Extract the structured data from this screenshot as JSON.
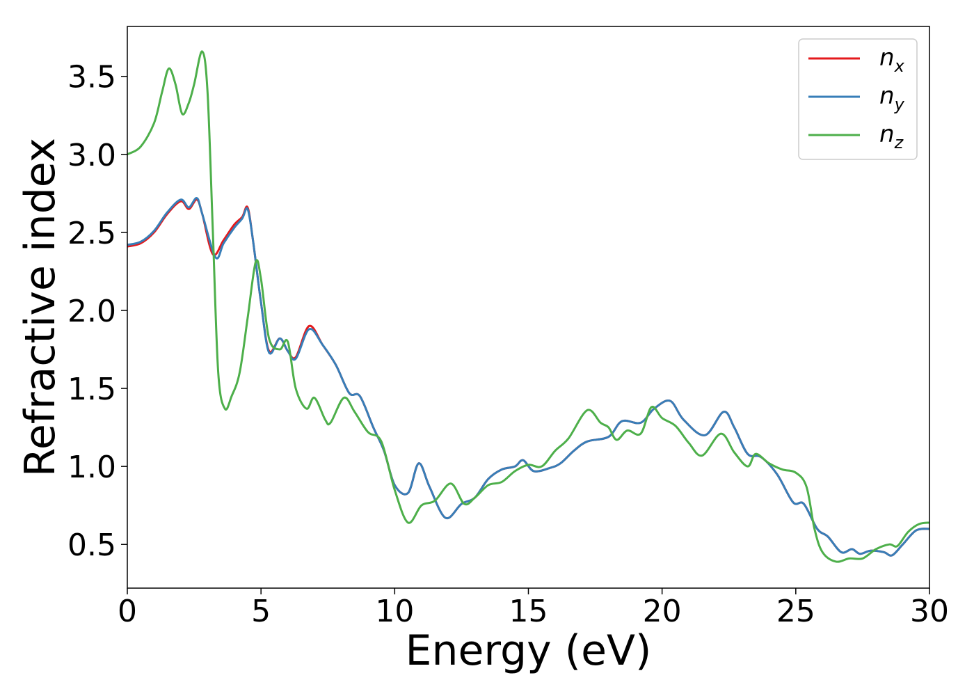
{
  "chart_data": {
    "type": "line",
    "title": "",
    "xlabel": "Energy (eV)",
    "ylabel": "Refractive index",
    "xlim": [
      0,
      30
    ],
    "ylim": [
      0.22,
      3.82
    ],
    "xticks": [
      "0",
      "5",
      "10",
      "15",
      "20",
      "25",
      "30"
    ],
    "yticks": [
      "0.5",
      "1.0",
      "1.5",
      "2.0",
      "2.5",
      "3.0",
      "3.5"
    ],
    "grid": false,
    "legend_position": "top-right",
    "series": [
      {
        "name": "n_x",
        "label_main": "n",
        "label_sub": "x",
        "color": "#e41a1c",
        "points": [
          [
            0,
            2.41
          ],
          [
            0.5,
            2.43
          ],
          [
            1,
            2.5
          ],
          [
            1.5,
            2.62
          ],
          [
            2,
            2.7
          ],
          [
            2.3,
            2.65
          ],
          [
            2.6,
            2.71
          ],
          [
            2.8,
            2.62
          ],
          [
            3.2,
            2.36
          ],
          [
            3.6,
            2.45
          ],
          [
            4,
            2.55
          ],
          [
            4.3,
            2.6
          ],
          [
            4.5,
            2.66
          ],
          [
            4.7,
            2.45
          ],
          [
            5,
            2.05
          ],
          [
            5.3,
            1.74
          ],
          [
            5.7,
            1.82
          ],
          [
            6,
            1.74
          ],
          [
            6.3,
            1.7
          ],
          [
            6.8,
            1.9
          ],
          [
            7.3,
            1.78
          ],
          [
            7.8,
            1.65
          ],
          [
            8.3,
            1.47
          ],
          [
            8.7,
            1.45
          ],
          [
            9.2,
            1.25
          ],
          [
            9.6,
            1.1
          ],
          [
            10,
            0.88
          ],
          [
            10.5,
            0.83
          ],
          [
            10.9,
            1.02
          ],
          [
            11.3,
            0.87
          ],
          [
            11.9,
            0.67
          ],
          [
            12.5,
            0.76
          ],
          [
            13,
            0.8
          ],
          [
            13.5,
            0.92
          ],
          [
            14,
            0.98
          ],
          [
            14.5,
            1.0
          ],
          [
            14.8,
            1.04
          ],
          [
            15.2,
            0.97
          ],
          [
            15.8,
            0.99
          ],
          [
            16.2,
            1.02
          ],
          [
            16.7,
            1.1
          ],
          [
            17.2,
            1.16
          ],
          [
            18,
            1.19
          ],
          [
            18.5,
            1.29
          ],
          [
            19.2,
            1.28
          ],
          [
            19.7,
            1.37
          ],
          [
            20.3,
            1.42
          ],
          [
            20.8,
            1.3
          ],
          [
            21.6,
            1.2
          ],
          [
            22.3,
            1.35
          ],
          [
            22.7,
            1.25
          ],
          [
            23.2,
            1.08
          ],
          [
            23.7,
            1.06
          ],
          [
            24.3,
            0.95
          ],
          [
            24.9,
            0.77
          ],
          [
            25.3,
            0.76
          ],
          [
            25.8,
            0.6
          ],
          [
            26.2,
            0.55
          ],
          [
            26.7,
            0.45
          ],
          [
            27.1,
            0.47
          ],
          [
            27.4,
            0.44
          ],
          [
            27.8,
            0.46
          ],
          [
            28.3,
            0.45
          ],
          [
            28.6,
            0.43
          ],
          [
            29,
            0.5
          ],
          [
            29.5,
            0.59
          ],
          [
            30,
            0.6
          ]
        ]
      },
      {
        "name": "n_y",
        "label_main": "n",
        "label_sub": "y",
        "color": "#377eb8",
        "points": [
          [
            0,
            2.42
          ],
          [
            0.5,
            2.44
          ],
          [
            1,
            2.51
          ],
          [
            1.5,
            2.63
          ],
          [
            2,
            2.71
          ],
          [
            2.3,
            2.66
          ],
          [
            2.6,
            2.72
          ],
          [
            2.8,
            2.62
          ],
          [
            3.3,
            2.34
          ],
          [
            3.6,
            2.43
          ],
          [
            4,
            2.53
          ],
          [
            4.3,
            2.59
          ],
          [
            4.5,
            2.65
          ],
          [
            4.7,
            2.45
          ],
          [
            5,
            2.05
          ],
          [
            5.3,
            1.73
          ],
          [
            5.7,
            1.82
          ],
          [
            6,
            1.74
          ],
          [
            6.3,
            1.69
          ],
          [
            6.8,
            1.88
          ],
          [
            7.3,
            1.78
          ],
          [
            7.8,
            1.65
          ],
          [
            8.3,
            1.47
          ],
          [
            8.7,
            1.45
          ],
          [
            9.2,
            1.25
          ],
          [
            9.6,
            1.1
          ],
          [
            10,
            0.88
          ],
          [
            10.5,
            0.83
          ],
          [
            10.9,
            1.02
          ],
          [
            11.3,
            0.87
          ],
          [
            11.9,
            0.67
          ],
          [
            12.5,
            0.76
          ],
          [
            13,
            0.8
          ],
          [
            13.5,
            0.92
          ],
          [
            14,
            0.98
          ],
          [
            14.5,
            1.0
          ],
          [
            14.8,
            1.04
          ],
          [
            15.2,
            0.97
          ],
          [
            15.8,
            0.99
          ],
          [
            16.2,
            1.02
          ],
          [
            16.7,
            1.1
          ],
          [
            17.2,
            1.16
          ],
          [
            18,
            1.19
          ],
          [
            18.5,
            1.29
          ],
          [
            19.2,
            1.28
          ],
          [
            19.7,
            1.37
          ],
          [
            20.3,
            1.42
          ],
          [
            20.8,
            1.3
          ],
          [
            21.6,
            1.2
          ],
          [
            22.3,
            1.35
          ],
          [
            22.7,
            1.25
          ],
          [
            23.2,
            1.08
          ],
          [
            23.7,
            1.06
          ],
          [
            24.3,
            0.95
          ],
          [
            24.9,
            0.77
          ],
          [
            25.3,
            0.76
          ],
          [
            25.8,
            0.6
          ],
          [
            26.2,
            0.55
          ],
          [
            26.7,
            0.45
          ],
          [
            27.1,
            0.47
          ],
          [
            27.4,
            0.44
          ],
          [
            27.8,
            0.46
          ],
          [
            28.3,
            0.45
          ],
          [
            28.6,
            0.43
          ],
          [
            29,
            0.5
          ],
          [
            29.5,
            0.59
          ],
          [
            30,
            0.6
          ]
        ]
      },
      {
        "name": "n_z",
        "label_main": "n",
        "label_sub": "z",
        "color": "#4daf4a",
        "points": [
          [
            0,
            3.0
          ],
          [
            0.5,
            3.05
          ],
          [
            1,
            3.2
          ],
          [
            1.3,
            3.4
          ],
          [
            1.55,
            3.55
          ],
          [
            1.8,
            3.45
          ],
          [
            2.05,
            3.26
          ],
          [
            2.3,
            3.33
          ],
          [
            2.5,
            3.45
          ],
          [
            2.8,
            3.66
          ],
          [
            3,
            3.4
          ],
          [
            3.2,
            2.5
          ],
          [
            3.4,
            1.6
          ],
          [
            3.65,
            1.37
          ],
          [
            3.9,
            1.45
          ],
          [
            4.2,
            1.6
          ],
          [
            4.5,
            1.95
          ],
          [
            4.8,
            2.31
          ],
          [
            5.0,
            2.2
          ],
          [
            5.3,
            1.82
          ],
          [
            5.7,
            1.75
          ],
          [
            6.0,
            1.8
          ],
          [
            6.3,
            1.5
          ],
          [
            6.7,
            1.37
          ],
          [
            7.0,
            1.44
          ],
          [
            7.4,
            1.3
          ],
          [
            7.6,
            1.28
          ],
          [
            8.1,
            1.44
          ],
          [
            8.5,
            1.35
          ],
          [
            9,
            1.22
          ],
          [
            9.5,
            1.16
          ],
          [
            10,
            0.85
          ],
          [
            10.5,
            0.64
          ],
          [
            11,
            0.75
          ],
          [
            11.5,
            0.78
          ],
          [
            12.1,
            0.89
          ],
          [
            12.6,
            0.76
          ],
          [
            13,
            0.8
          ],
          [
            13.5,
            0.88
          ],
          [
            14,
            0.9
          ],
          [
            14.5,
            0.97
          ],
          [
            15,
            1.01
          ],
          [
            15.5,
            1.0
          ],
          [
            16,
            1.1
          ],
          [
            16.5,
            1.18
          ],
          [
            17.2,
            1.36
          ],
          [
            17.7,
            1.28
          ],
          [
            18,
            1.25
          ],
          [
            18.3,
            1.17
          ],
          [
            18.7,
            1.23
          ],
          [
            19.2,
            1.21
          ],
          [
            19.6,
            1.38
          ],
          [
            20,
            1.31
          ],
          [
            20.5,
            1.26
          ],
          [
            21,
            1.15
          ],
          [
            21.5,
            1.07
          ],
          [
            22.2,
            1.21
          ],
          [
            22.7,
            1.09
          ],
          [
            23.2,
            1.0
          ],
          [
            23.5,
            1.08
          ],
          [
            24,
            1.02
          ],
          [
            24.5,
            0.98
          ],
          [
            25,
            0.96
          ],
          [
            25.4,
            0.87
          ],
          [
            25.7,
            0.6
          ],
          [
            26,
            0.45
          ],
          [
            26.5,
            0.39
          ],
          [
            27,
            0.41
          ],
          [
            27.5,
            0.41
          ],
          [
            28,
            0.47
          ],
          [
            28.5,
            0.5
          ],
          [
            28.8,
            0.49
          ],
          [
            29.2,
            0.58
          ],
          [
            29.6,
            0.63
          ],
          [
            30,
            0.64
          ]
        ]
      }
    ]
  }
}
